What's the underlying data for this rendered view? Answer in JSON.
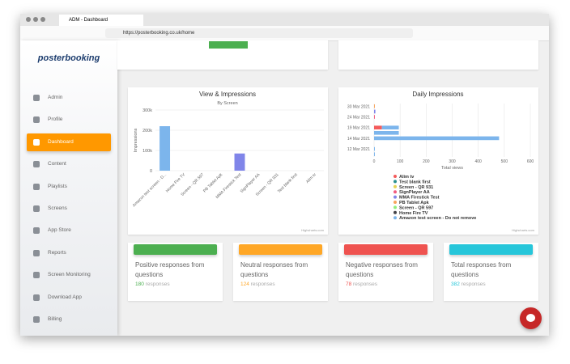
{
  "browser": {
    "tab_title": "ADM - Dashboard",
    "url": "https://posterbooking.co.uk/home"
  },
  "sidebar": {
    "logo": "posterbooking",
    "menu": [
      "Admin",
      "Profile",
      "Dashboard",
      "Content",
      "Playlists",
      "Screens",
      "App Store",
      "Reports",
      "Screen Monitoring",
      "Download App",
      "Billing"
    ],
    "active": "Dashboard"
  },
  "chart_data": [
    {
      "type": "bar",
      "title": "View & Impressions",
      "subtitle": "By Screen",
      "y_label": "Impressions",
      "categories": [
        "Amazon test screen - D...",
        "Home Fire TV",
        "Screen - QR 597",
        "PB Tablet Apk",
        "MMA Firestick Test",
        "SignPlayer AA",
        "Screen - QR 931",
        "Test blank first",
        "Alim tv"
      ],
      "values": [
        220000,
        0,
        0,
        0,
        85000,
        0,
        0,
        0,
        0
      ],
      "colors": [
        "#7cb5ec",
        "#434348",
        "#90ed7d",
        "#f7a35c",
        "#8085e9",
        "#f15c80",
        "#e4d354",
        "#2b908f",
        "#f45b5b"
      ],
      "ylim": [
        0,
        300000
      ],
      "yticks": [
        {
          "value": 0,
          "label": "0"
        },
        {
          "value": 100000,
          "label": "100k"
        },
        {
          "value": 200000,
          "label": "200k"
        },
        {
          "value": 300000,
          "label": "300k"
        }
      ],
      "grid": true,
      "credits": "Highcharts.com"
    },
    {
      "type": "stacked_hbar",
      "title": "Daily Impressions",
      "x_label": "Total views",
      "categories": [
        "30 Mar 2021",
        null,
        "24 Mar 2021",
        null,
        "19 Mar 2021",
        null,
        "14 Mar 2021",
        null,
        "12 Mar 2021",
        null
      ],
      "series": [
        {
          "name": "Alim tv",
          "color": "#f45b5b",
          "values": [
            null,
            null,
            null,
            null,
            30,
            null,
            null,
            null,
            null,
            null
          ]
        },
        {
          "name": "Test blank first",
          "color": "#2b908f",
          "values": [
            null,
            null,
            null,
            null,
            null,
            null,
            null,
            null,
            null,
            null
          ]
        },
        {
          "name": "Screen - QR 931",
          "color": "#e4d354",
          "values": [
            null,
            null,
            null,
            null,
            null,
            null,
            null,
            null,
            null,
            null
          ]
        },
        {
          "name": "SignPlayer AA",
          "color": "#f15c80",
          "values": [
            null,
            null,
            3,
            null,
            null,
            null,
            null,
            null,
            null,
            null
          ]
        },
        {
          "name": "MMA Firestick Test",
          "color": "#8085e9",
          "values": [
            null,
            5,
            null,
            null,
            null,
            null,
            null,
            null,
            null,
            null
          ]
        },
        {
          "name": "PB Tablet Apk",
          "color": "#f7a35c",
          "values": [
            3,
            null,
            null,
            null,
            null,
            null,
            null,
            null,
            null,
            null
          ]
        },
        {
          "name": "Screen - QR 597",
          "color": "#90ed7d",
          "values": [
            null,
            null,
            null,
            null,
            null,
            null,
            null,
            null,
            null,
            null
          ]
        },
        {
          "name": "Home Fire TV",
          "color": "#434348",
          "values": [
            null,
            null,
            null,
            null,
            null,
            null,
            null,
            null,
            null,
            null
          ]
        },
        {
          "name": "Amazon test screen - Do not remove",
          "color": "#7cb5ec",
          "values": [
            null,
            null,
            null,
            null,
            65,
            95,
            480,
            null,
            3,
            3
          ]
        }
      ],
      "xlim": [
        0,
        600
      ],
      "xticks": [
        0,
        100,
        200,
        300,
        400,
        500,
        600
      ],
      "grid": true,
      "legend": "bottom",
      "credits": "Highcharts.com"
    }
  ],
  "cards": [
    {
      "title": "Positive responses from questions",
      "count": 180,
      "unit": "responses",
      "color": "#4caf50"
    },
    {
      "title": "Neutral responses from questions",
      "count": 124,
      "unit": "responses",
      "color": "#ffa726"
    },
    {
      "title": "Negative responses from questions",
      "count": 78,
      "unit": "responses",
      "color": "#ef5350"
    },
    {
      "title": "Total responses from questions",
      "count": 382,
      "unit": "responses",
      "color": "#26c6da"
    }
  ]
}
